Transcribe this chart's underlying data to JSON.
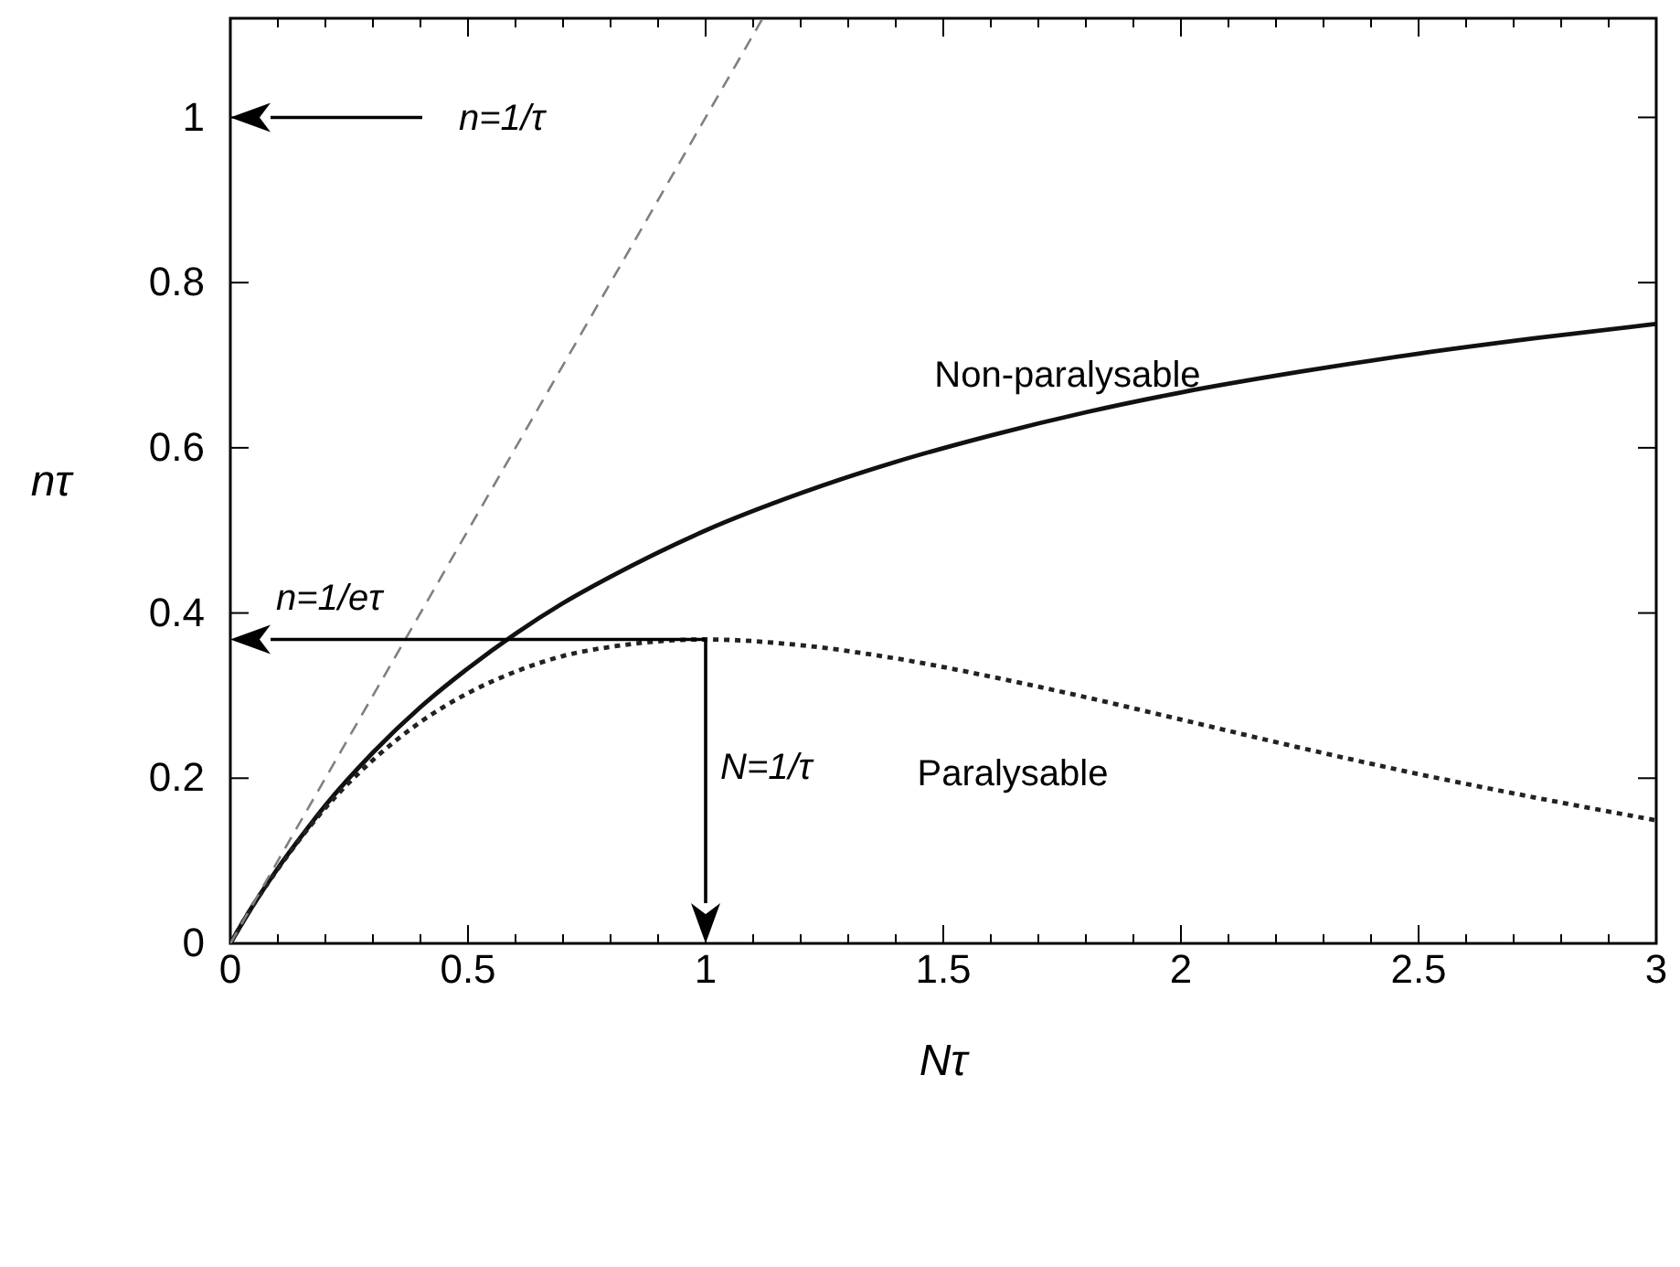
{
  "chart_data": {
    "type": "line",
    "xlabel": "Nτ",
    "ylabel": "nτ",
    "xlim": [
      0,
      3
    ],
    "ylim": [
      0,
      1.12
    ],
    "xticks": [
      0,
      {
        "value": 0.1,
        "label": null
      },
      {
        "value": 0.2,
        "label": null
      },
      {
        "value": 0.3,
        "label": null
      },
      {
        "value": 0.4,
        "label": null
      },
      0.5,
      {
        "value": 0.6,
        "label": null
      },
      {
        "value": 0.7,
        "label": null
      },
      {
        "value": 0.8,
        "label": null
      },
      {
        "value": 0.9,
        "label": null
      },
      1,
      {
        "value": 1.1,
        "label": null
      },
      {
        "value": 1.2,
        "label": null
      },
      {
        "value": 1.3,
        "label": null
      },
      {
        "value": 1.4,
        "label": null
      },
      1.5,
      {
        "value": 1.6,
        "label": null
      },
      {
        "value": 1.7,
        "label": null
      },
      {
        "value": 1.8,
        "label": null
      },
      {
        "value": 1.9,
        "label": null
      },
      2,
      {
        "value": 2.1,
        "label": null
      },
      {
        "value": 2.2,
        "label": null
      },
      {
        "value": 2.3,
        "label": null
      },
      {
        "value": 2.4,
        "label": null
      },
      2.5,
      {
        "value": 2.6,
        "label": null
      },
      {
        "value": 2.7,
        "label": null
      },
      {
        "value": 2.8,
        "label": null
      },
      {
        "value": 2.9,
        "label": null
      },
      3
    ],
    "yticks": [
      0,
      0.2,
      0.4,
      0.6,
      0.8,
      1
    ],
    "grid": false,
    "series": [
      {
        "name": "Non-paralysable",
        "color": "#111111",
        "line_style": "solid",
        "x": [
          0,
          0.05,
          0.1,
          0.15,
          0.2,
          0.3,
          0.4,
          0.5,
          0.6,
          0.7,
          0.8,
          1,
          1.2,
          1.4,
          1.6,
          1.8,
          2,
          2.25,
          2.5,
          2.75,
          3
        ],
        "values": [
          0,
          0.048,
          0.091,
          0.13,
          0.167,
          0.231,
          0.286,
          0.333,
          0.375,
          0.412,
          0.444,
          0.5,
          0.545,
          0.583,
          0.615,
          0.643,
          0.667,
          0.692,
          0.714,
          0.733,
          0.75
        ]
      },
      {
        "name": "Paralysable",
        "color": "#222222",
        "line_style": "dotted",
        "x": [
          0,
          0.05,
          0.1,
          0.15,
          0.2,
          0.3,
          0.4,
          0.5,
          0.6,
          0.7,
          0.8,
          1,
          1.2,
          1.4,
          1.6,
          1.8,
          2,
          2.25,
          2.5,
          2.75,
          3
        ],
        "values": [
          0,
          0.048,
          0.09,
          0.129,
          0.164,
          0.222,
          0.268,
          0.303,
          0.329,
          0.348,
          0.359,
          0.368,
          0.361,
          0.345,
          0.323,
          0.298,
          0.271,
          0.237,
          0.205,
          0.176,
          0.149
        ]
      },
      {
        "color": "#808080",
        "line_style": "dashed",
        "x": [
          0,
          1.12
        ],
        "values": [
          0,
          1.12
        ]
      }
    ],
    "annotations": [
      "n=1/eτ"
    ],
    "ref_lines": [
      {
        "axis": "y",
        "value": 1,
        "label": "n=1/τ"
      },
      {
        "axis": "y",
        "value": 0.368
      },
      {
        "axis": "x",
        "value": 1,
        "label": "N=1/τ"
      }
    ]
  }
}
